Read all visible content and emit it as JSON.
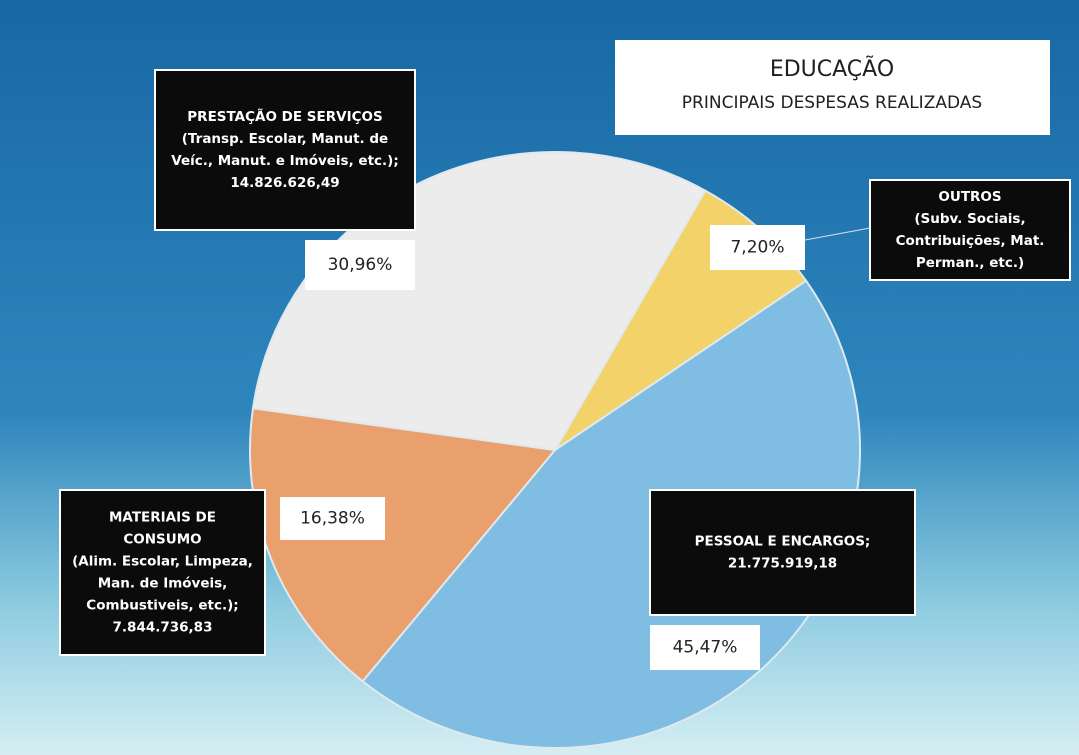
{
  "chart_data": {
    "type": "pie",
    "title": "EDUCAÇÃO",
    "subtitle": "PRINCIPAIS DESPESAS REALIZADAS",
    "values": [
      7.2,
      45.47,
      16.38,
      30.96
    ],
    "value_labels": [
      "7,20%",
      "45,47%",
      "16,38%",
      "30,96%"
    ],
    "colors": [
      "#f3d269",
      "#80bde3",
      "#eaa06c",
      "#ececec"
    ],
    "callouts": [
      [
        "OUTROS",
        "(Subv. Sociais,",
        "Contribuições, Mat.",
        "Perman., etc.)"
      ],
      [
        "PESSOAL E ENCARGOS;",
        "21.775.919,18"
      ],
      [
        "MATERIAIS DE",
        "CONSUMO",
        "(Alim. Escolar, Limpeza,",
        "Man. de Imóveis,",
        "Combustiveis, etc.);",
        "7.844.736,83"
      ],
      [
        "PRESTAÇÃO DE SERVIÇOS",
        "(Transp. Escolar, Manut. de",
        "Veíc., Manut. e Imóveis, etc.);",
        "14.826.626,49"
      ]
    ]
  }
}
